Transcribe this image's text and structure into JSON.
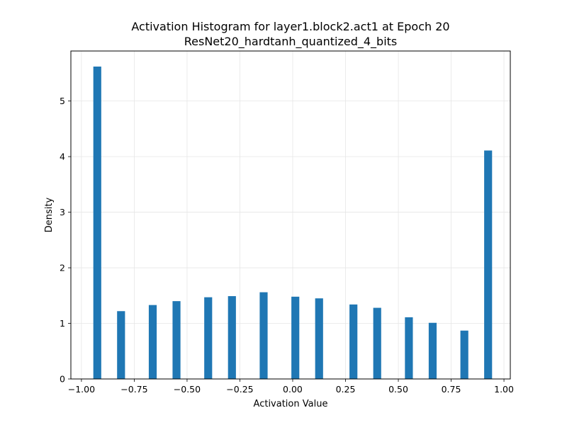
{
  "chart_data": {
    "type": "bar",
    "title": "Activation Histogram for layer1.block2.act1 at Epoch 20",
    "subtitle": "ResNet20_hardtanh_quantized_4_bits",
    "xlabel": "Activation Value",
    "ylabel": "Density",
    "xlim": [
      -1.05,
      1.03
    ],
    "ylim": [
      0,
      5.9
    ],
    "grid": true,
    "bar_width": 0.0375,
    "color": "#1f77b4",
    "x_ticks": [
      -1.0,
      -0.75,
      -0.5,
      -0.25,
      0.0,
      0.25,
      0.5,
      0.75,
      1.0
    ],
    "x_tick_labels": [
      "−1.00",
      "−0.75",
      "−0.50",
      "−0.25",
      "0.00",
      "0.25",
      "0.50",
      "0.75",
      "1.00"
    ],
    "y_ticks": [
      0,
      1,
      2,
      3,
      4,
      5
    ],
    "y_tick_labels": [
      "0",
      "1",
      "2",
      "3",
      "4",
      "5"
    ],
    "x": [
      -0.925,
      -0.8125,
      -0.6625,
      -0.55,
      -0.4,
      -0.2875,
      -0.1375,
      0.0125,
      0.125,
      0.2875,
      0.4,
      0.55,
      0.6625,
      0.8125,
      0.925
    ],
    "values": [
      5.62,
      1.22,
      1.33,
      1.4,
      1.47,
      1.49,
      1.56,
      1.48,
      1.45,
      1.34,
      1.28,
      1.11,
      1.01,
      0.87,
      4.11
    ]
  }
}
